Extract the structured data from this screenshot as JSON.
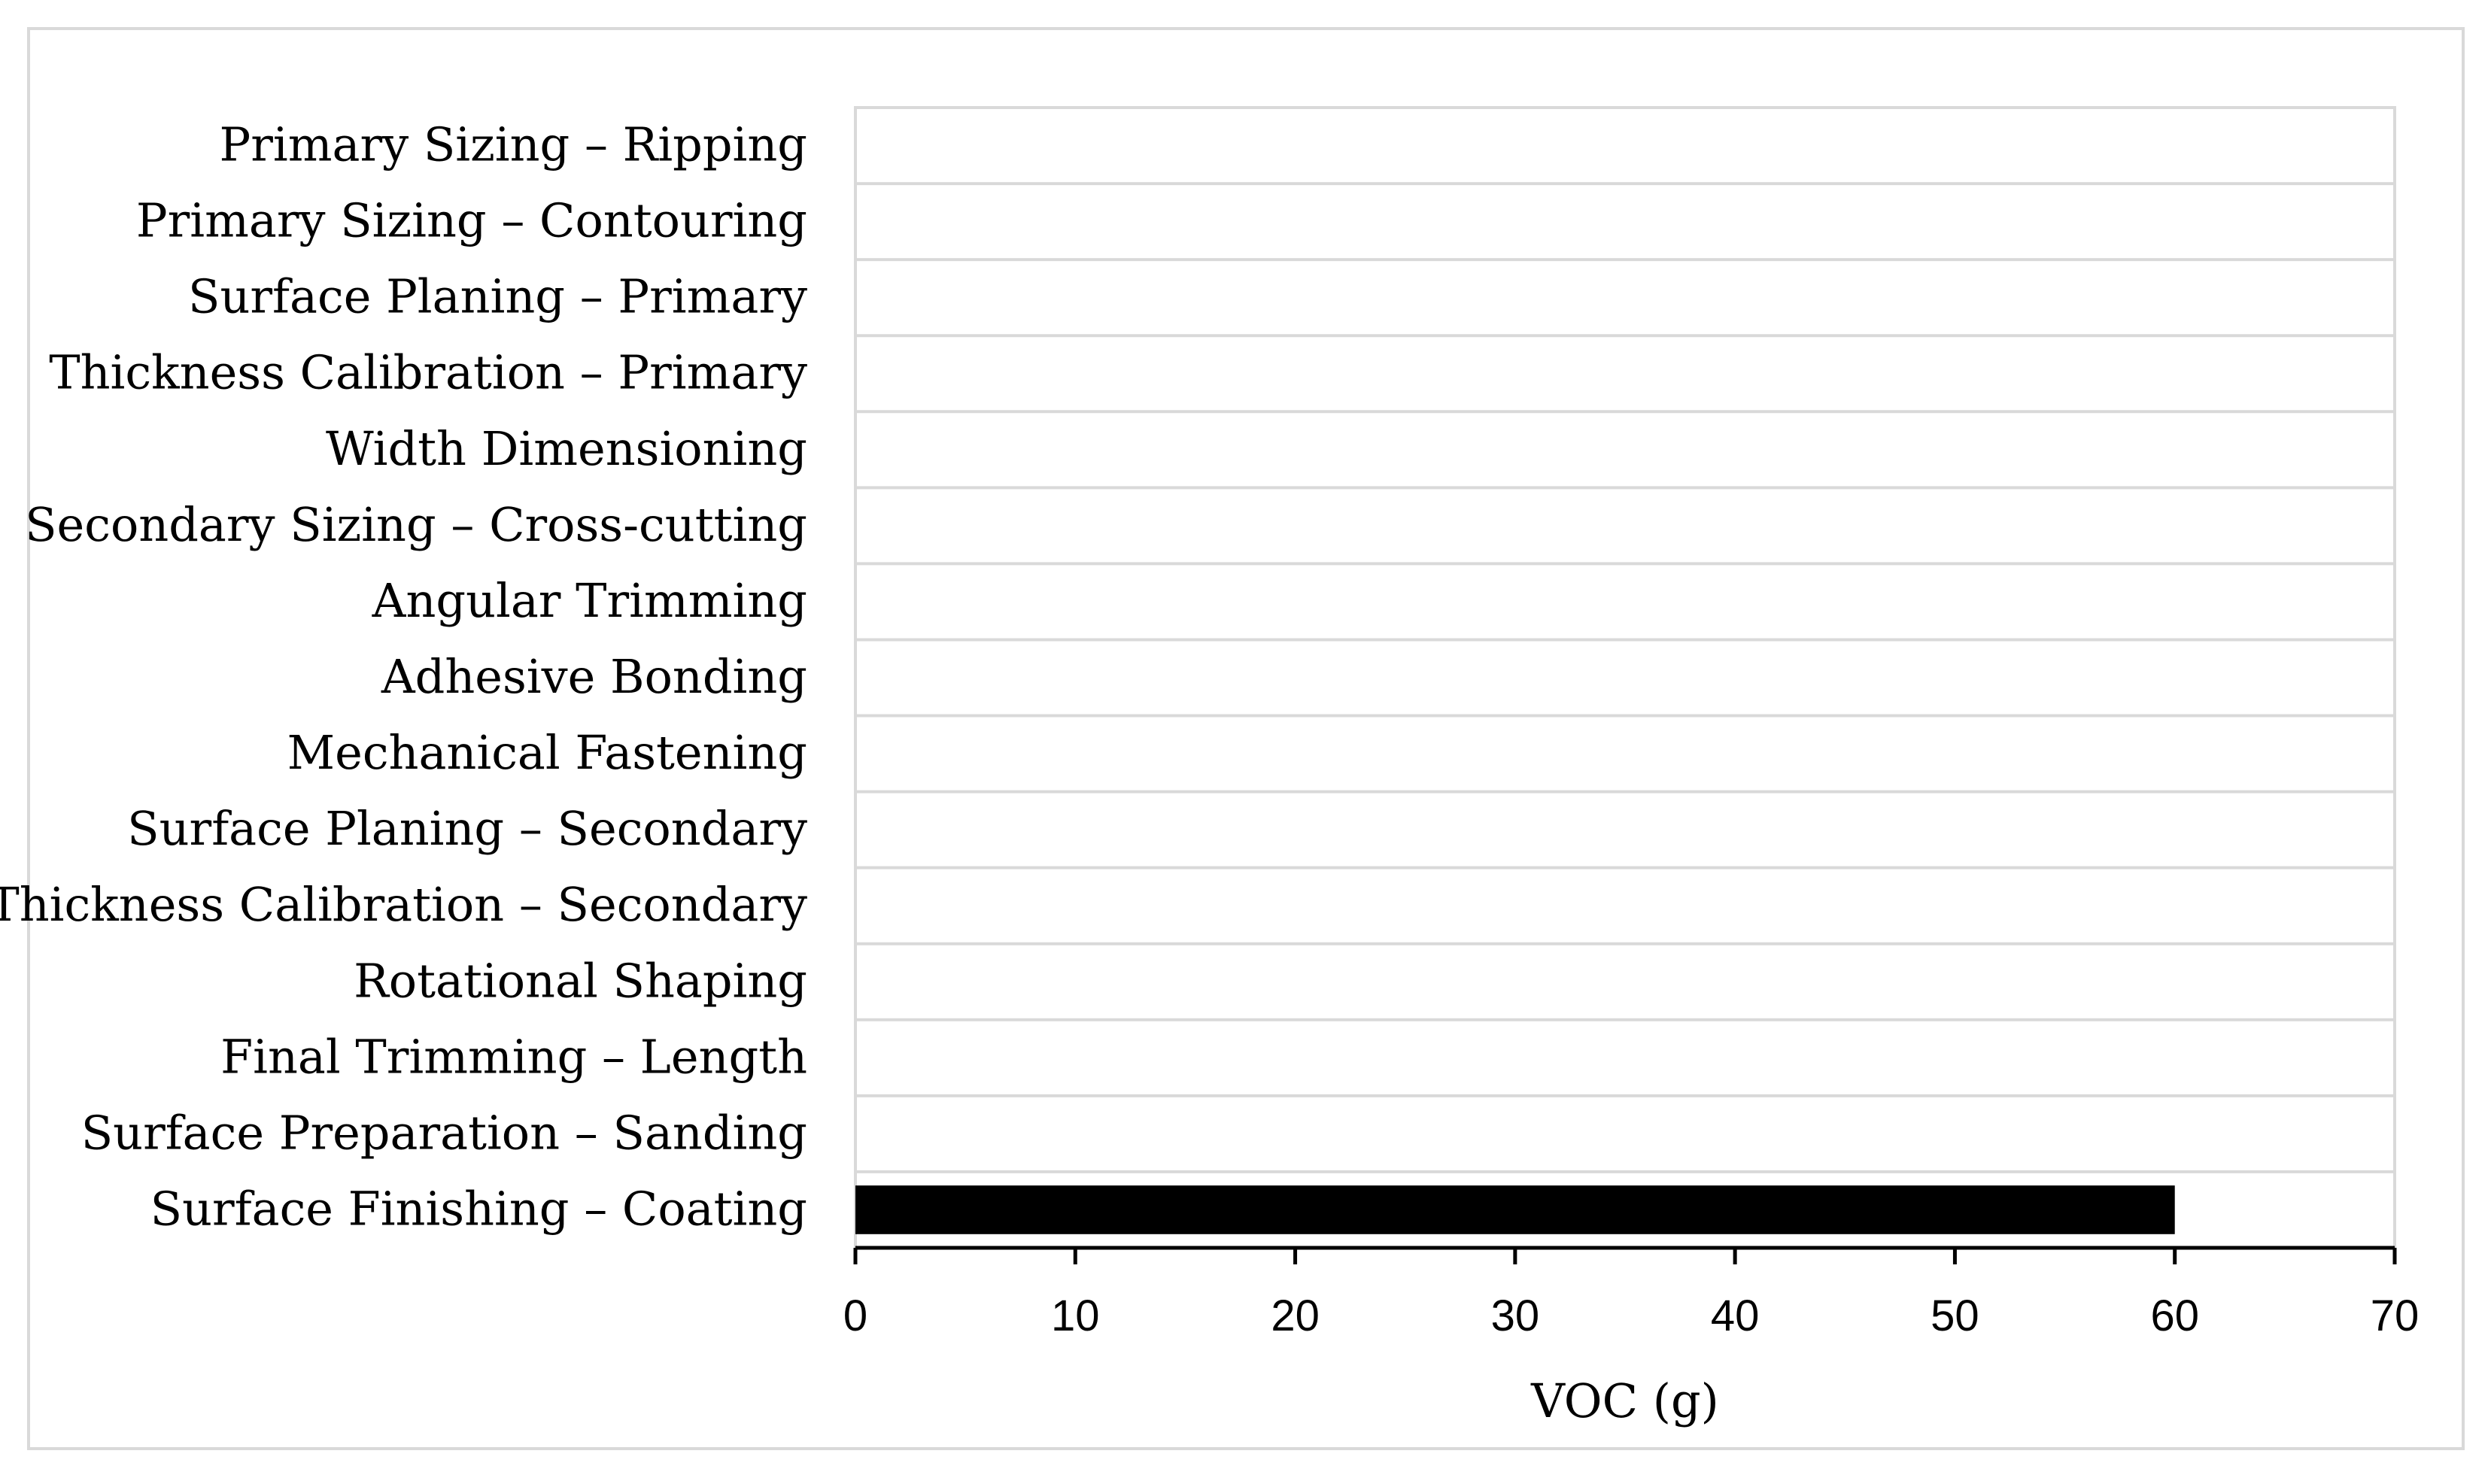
{
  "chart_data": {
    "type": "bar",
    "orientation": "horizontal",
    "categories": [
      "Primary Sizing – Ripping",
      "Primary Sizing – Contouring",
      "Surface Planing – Primary",
      "Thickness Calibration – Primary",
      "Width Dimensioning",
      "Secondary Sizing – Cross-cutting",
      "Angular Trimming",
      "Adhesive Bonding",
      "Mechanical Fastening",
      "Surface Planing – Secondary",
      "Thickness Calibration – Secondary",
      "Rotational Shaping",
      "Final Trimming – Length",
      "Surface Preparation – Sanding",
      "Surface Finishing – Coating"
    ],
    "values": [
      0,
      0,
      0,
      0,
      0,
      0,
      0,
      0,
      0,
      0,
      0,
      0,
      0,
      0,
      60
    ],
    "xlabel": "VOC (g)",
    "ylabel": "",
    "xlim": [
      0,
      70
    ],
    "xticks": [
      0,
      10,
      20,
      30,
      40,
      50,
      60,
      70
    ],
    "grid": "horizontal separators",
    "bar_color": "#000000",
    "grid_color": "#d9d9d9"
  }
}
